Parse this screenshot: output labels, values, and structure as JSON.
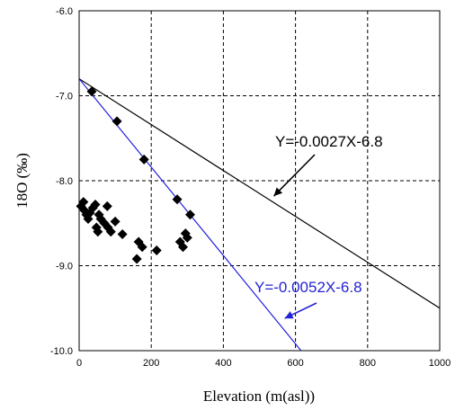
{
  "chart_data": {
    "type": "scatter",
    "xlabel": "Elevation (m(asl))",
    "ylabel": "18O (‰)",
    "xlim": [
      0,
      1000
    ],
    "ylim": [
      -10.0,
      -6.0
    ],
    "x_ticks": [
      "0",
      "200",
      "400",
      "600",
      "800",
      "1000"
    ],
    "y_ticks": [
      "-6.0",
      "-7.0",
      "-8.0",
      "-9.0",
      "-10.0"
    ],
    "grid": true,
    "grid_style": "dashed",
    "series": [
      {
        "type": "scatter",
        "marker": "diamond",
        "color": "#000000",
        "points": [
          [
            35,
            -6.95
          ],
          [
            105,
            -7.3
          ],
          [
            180,
            -7.75
          ],
          [
            5,
            -8.3
          ],
          [
            12,
            -8.25
          ],
          [
            15,
            -8.35
          ],
          [
            20,
            -8.4
          ],
          [
            25,
            -8.45
          ],
          [
            30,
            -8.38
          ],
          [
            38,
            -8.32
          ],
          [
            45,
            -8.28
          ],
          [
            48,
            -8.55
          ],
          [
            52,
            -8.6
          ],
          [
            55,
            -8.4
          ],
          [
            60,
            -8.45
          ],
          [
            70,
            -8.5
          ],
          [
            78,
            -8.3
          ],
          [
            80,
            -8.55
          ],
          [
            88,
            -8.6
          ],
          [
            100,
            -8.48
          ],
          [
            120,
            -8.63
          ],
          [
            160,
            -8.92
          ],
          [
            165,
            -8.72
          ],
          [
            175,
            -8.78
          ],
          [
            215,
            -8.82
          ],
          [
            272,
            -8.22
          ],
          [
            280,
            -8.72
          ],
          [
            288,
            -8.78
          ],
          [
            295,
            -8.62
          ],
          [
            300,
            -8.67
          ],
          [
            308,
            -8.4
          ]
        ]
      },
      {
        "type": "line",
        "color": "#000000",
        "x": [
          0,
          1000
        ],
        "y": [
          -6.8,
          -9.5
        ]
      },
      {
        "type": "line",
        "color": "#2020e0",
        "x": [
          0,
          615.4
        ],
        "y": [
          -6.8,
          -10.0
        ]
      }
    ],
    "annotations": [
      {
        "text": "Y=-0.0027X-6.8",
        "color": "#000000",
        "arrow_to": [
          540,
          -8.18
        ]
      },
      {
        "text": "Y=-0.0052X-6.8",
        "color": "#2323d6",
        "arrow_to": [
          570,
          -9.62
        ]
      }
    ]
  }
}
